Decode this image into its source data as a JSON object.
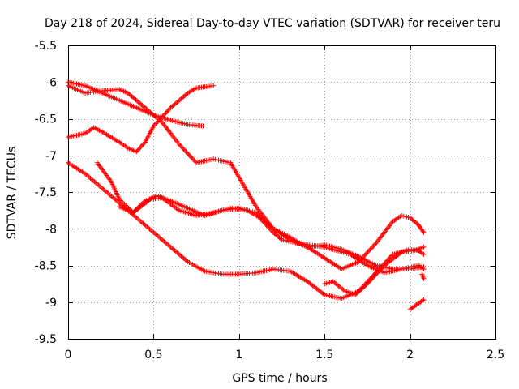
{
  "chart_data": {
    "type": "scatter",
    "title": "Day 218 of 2024, Sidereal Day-to-day VTEC variation (SDTVAR) for receiver teru",
    "xlabel": "GPS time / hours",
    "ylabel": "SDTVAR / TECUs",
    "xlim": [
      0,
      2.5
    ],
    "ylim": [
      -9.5,
      -5.5
    ],
    "xticks": [
      0,
      0.5,
      1,
      1.5,
      2,
      2.5
    ],
    "xtick_labels": [
      "0",
      "0.5",
      "1",
      "1.5",
      "2",
      "2.5"
    ],
    "yticks": [
      -5.5,
      -6,
      -6.5,
      -7,
      -7.5,
      -8,
      -8.5,
      -9,
      -9.5
    ],
    "ytick_labels": [
      "-5.5",
      "-6",
      "-6.5",
      "-7",
      "-7.5",
      "-8",
      "-8.5",
      "-9",
      "-9.5"
    ],
    "grid": true,
    "legend": "none",
    "marker": "plus",
    "color": "#ff0000",
    "series": [
      {
        "name": "track-1",
        "points": [
          [
            0.0,
            -6.0
          ],
          [
            0.1,
            -6.05
          ],
          [
            0.2,
            -6.15
          ],
          [
            0.3,
            -6.25
          ],
          [
            0.4,
            -6.35
          ],
          [
            0.5,
            -6.45
          ],
          [
            0.6,
            -6.52
          ],
          [
            0.7,
            -6.58
          ],
          [
            0.79,
            -6.6
          ]
        ]
      },
      {
        "name": "track-2",
        "points": [
          [
            0.0,
            -6.05
          ],
          [
            0.1,
            -6.15
          ],
          [
            0.2,
            -6.12
          ],
          [
            0.3,
            -6.1
          ],
          [
            0.35,
            -6.15
          ],
          [
            0.45,
            -6.35
          ],
          [
            0.55,
            -6.55
          ],
          [
            0.65,
            -6.85
          ],
          [
            0.75,
            -7.1
          ],
          [
            0.85,
            -7.05
          ],
          [
            0.95,
            -7.1
          ],
          [
            1.0,
            -7.3
          ],
          [
            1.1,
            -7.7
          ],
          [
            1.2,
            -8.0
          ],
          [
            1.3,
            -8.15
          ],
          [
            1.4,
            -8.25
          ],
          [
            1.5,
            -8.4
          ],
          [
            1.6,
            -8.55
          ],
          [
            1.7,
            -8.45
          ],
          [
            1.8,
            -8.2
          ],
          [
            1.9,
            -7.9
          ],
          [
            1.95,
            -7.82
          ],
          [
            2.0,
            -7.85
          ],
          [
            2.05,
            -7.95
          ],
          [
            2.08,
            -8.05
          ]
        ]
      },
      {
        "name": "track-3",
        "points": [
          [
            0.0,
            -6.75
          ],
          [
            0.1,
            -6.7
          ],
          [
            0.15,
            -6.62
          ],
          [
            0.2,
            -6.68
          ],
          [
            0.3,
            -6.82
          ],
          [
            0.35,
            -6.9
          ],
          [
            0.4,
            -6.95
          ],
          [
            0.45,
            -6.82
          ],
          [
            0.5,
            -6.6
          ],
          [
            0.6,
            -6.35
          ],
          [
            0.7,
            -6.15
          ],
          [
            0.75,
            -6.08
          ],
          [
            0.85,
            -6.05
          ]
        ]
      },
      {
        "name": "track-4",
        "points": [
          [
            0.0,
            -7.1
          ],
          [
            0.1,
            -7.25
          ],
          [
            0.2,
            -7.45
          ],
          [
            0.3,
            -7.65
          ],
          [
            0.4,
            -7.85
          ],
          [
            0.5,
            -8.05
          ],
          [
            0.6,
            -8.25
          ],
          [
            0.7,
            -8.45
          ],
          [
            0.8,
            -8.58
          ],
          [
            0.9,
            -8.62
          ],
          [
            1.0,
            -8.62
          ],
          [
            1.1,
            -8.6
          ],
          [
            1.2,
            -8.55
          ],
          [
            1.3,
            -8.58
          ],
          [
            1.4,
            -8.72
          ],
          [
            1.5,
            -8.9
          ],
          [
            1.6,
            -8.95
          ],
          [
            1.7,
            -8.85
          ],
          [
            1.8,
            -8.6
          ],
          [
            1.9,
            -8.35
          ],
          [
            2.0,
            -8.28
          ],
          [
            2.05,
            -8.3
          ],
          [
            2.08,
            -8.35
          ]
        ]
      },
      {
        "name": "track-5",
        "points": [
          [
            0.17,
            -7.1
          ],
          [
            0.25,
            -7.35
          ],
          [
            0.3,
            -7.6
          ],
          [
            0.38,
            -7.78
          ],
          [
            0.45,
            -7.62
          ],
          [
            0.52,
            -7.55
          ],
          [
            0.6,
            -7.62
          ],
          [
            0.7,
            -7.72
          ],
          [
            0.8,
            -7.82
          ],
          [
            0.9,
            -7.75
          ],
          [
            1.0,
            -7.72
          ],
          [
            1.1,
            -7.78
          ],
          [
            1.2,
            -8.0
          ],
          [
            1.3,
            -8.12
          ],
          [
            1.4,
            -8.25
          ],
          [
            1.5,
            -8.22
          ],
          [
            1.6,
            -8.28
          ],
          [
            1.7,
            -8.38
          ],
          [
            1.8,
            -8.5
          ],
          [
            1.9,
            -8.55
          ],
          [
            2.0,
            -8.55
          ],
          [
            2.08,
            -8.52
          ]
        ]
      },
      {
        "name": "track-6",
        "points": [
          [
            0.3,
            -7.7
          ],
          [
            0.38,
            -7.78
          ],
          [
            0.48,
            -7.6
          ],
          [
            0.55,
            -7.58
          ],
          [
            0.65,
            -7.75
          ],
          [
            0.75,
            -7.82
          ],
          [
            0.85,
            -7.78
          ],
          [
            0.95,
            -7.72
          ],
          [
            1.05,
            -7.75
          ],
          [
            1.12,
            -7.85
          ],
          [
            1.2,
            -8.05
          ],
          [
            1.25,
            -8.15
          ],
          [
            1.35,
            -8.2
          ],
          [
            1.5,
            -8.25
          ],
          [
            1.65,
            -8.35
          ],
          [
            1.75,
            -8.5
          ],
          [
            1.85,
            -8.6
          ],
          [
            1.95,
            -8.55
          ],
          [
            2.05,
            -8.5
          ],
          [
            2.08,
            -8.55
          ]
        ]
      },
      {
        "name": "track-7",
        "points": [
          [
            1.5,
            -8.75
          ],
          [
            1.55,
            -8.72
          ],
          [
            1.62,
            -8.85
          ],
          [
            1.68,
            -8.9
          ],
          [
            1.75,
            -8.75
          ],
          [
            1.85,
            -8.5
          ],
          [
            1.95,
            -8.32
          ],
          [
            2.02,
            -8.3
          ],
          [
            2.08,
            -8.25
          ]
        ]
      },
      {
        "name": "track-8",
        "points": [
          [
            2.0,
            -9.1
          ],
          [
            2.03,
            -9.05
          ],
          [
            2.06,
            -9.0
          ],
          [
            2.08,
            -8.97
          ]
        ]
      },
      {
        "name": "track-9",
        "points": [
          [
            2.07,
            -8.62
          ],
          [
            2.08,
            -8.68
          ]
        ]
      }
    ]
  }
}
